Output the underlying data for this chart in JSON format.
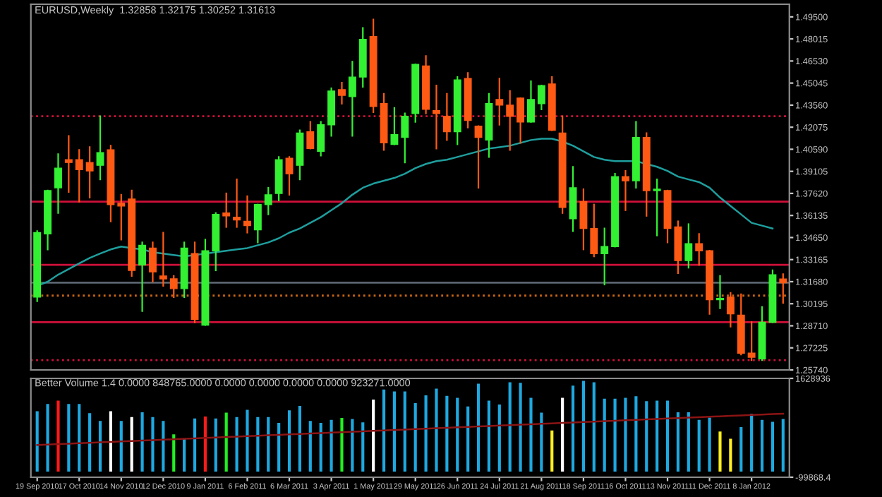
{
  "chart_data": [
    {
      "type": "candlestick",
      "title": "EURUSD,Weekly  1.32858 1.32175 1.30252 1.31613",
      "categories": [
        null,
        null,
        null,
        null,
        null,
        null,
        null,
        null,
        null,
        null,
        null,
        null,
        null,
        null,
        null,
        null,
        null,
        null,
        null,
        null,
        null,
        null,
        null,
        null,
        null,
        null,
        null,
        null,
        null,
        null,
        null,
        null,
        null,
        null,
        null,
        null,
        null,
        null,
        null,
        null,
        null,
        null,
        null,
        null,
        null,
        null,
        null,
        null,
        null,
        null,
        null,
        null,
        null,
        null,
        null,
        null,
        null,
        null,
        null,
        null,
        null,
        null,
        null,
        null,
        null,
        null,
        null,
        null,
        null,
        null,
        null,
        null
      ],
      "ohlc": [
        [
          1.3064,
          1.3508,
          1.3036,
          1.3498
        ],
        [
          1.3489,
          1.3781,
          1.3385,
          1.3781
        ],
        [
          1.38,
          1.4026,
          1.363,
          1.3932
        ],
        [
          1.3989,
          1.4149,
          1.3772,
          1.397
        ],
        [
          1.3989,
          1.4055,
          1.3706,
          1.3922
        ],
        [
          1.397,
          1.4073,
          1.3734,
          1.3913
        ],
        [
          1.3951,
          1.4281,
          1.3856,
          1.4036
        ],
        [
          1.4055,
          1.4083,
          1.3574,
          1.3687
        ],
        [
          1.3696,
          1.3753,
          1.3451,
          1.3677
        ],
        [
          1.3724,
          1.3781,
          1.3206,
          1.3244
        ],
        [
          1.3281,
          1.3432,
          1.297,
          1.3413
        ],
        [
          1.3394,
          1.3432,
          1.3168,
          1.3234
        ],
        [
          1.3206,
          1.3498,
          1.314,
          1.3187
        ],
        [
          1.3187,
          1.3206,
          1.3064,
          1.3121
        ],
        [
          1.3121,
          1.3432,
          1.3064,
          1.3394
        ],
        [
          1.3357,
          1.3432,
          1.2895,
          1.2913
        ],
        [
          1.2876,
          1.3451,
          1.2876,
          1.3376
        ],
        [
          1.3376,
          1.363,
          1.3244,
          1.3621
        ],
        [
          1.363,
          1.3762,
          1.3536,
          1.3611
        ],
        [
          1.3602,
          1.3856,
          1.3536,
          1.3583
        ],
        [
          1.3574,
          1.3743,
          1.3498,
          1.3545
        ],
        [
          1.3517,
          1.3687,
          1.3432,
          1.3687
        ],
        [
          1.3687,
          1.38,
          1.3621,
          1.3753
        ],
        [
          1.3762,
          1.4007,
          1.3715,
          1.3989
        ],
        [
          1.3998,
          1.4007,
          1.3753,
          1.3894
        ],
        [
          1.3951,
          1.4187,
          1.3856,
          1.4168
        ],
        [
          1.4177,
          1.4243,
          1.4064,
          1.4064
        ],
        [
          1.4045,
          1.4243,
          1.4017,
          1.4224
        ],
        [
          1.4224,
          1.4469,
          1.4149,
          1.4451
        ],
        [
          1.446,
          1.4507,
          1.4366,
          1.4422
        ],
        [
          1.4413,
          1.4649,
          1.4149,
          1.4545
        ],
        [
          1.4545,
          1.4875,
          1.4479,
          1.4799
        ],
        [
          1.4818,
          1.4932,
          1.4309,
          1.4347
        ],
        [
          1.4366,
          1.4432,
          1.4055,
          1.4102
        ],
        [
          1.4092,
          1.4337,
          1.4092,
          1.4158
        ],
        [
          1.4139,
          1.43,
          1.397,
          1.4281
        ],
        [
          1.43,
          1.463,
          1.4243,
          1.463
        ],
        [
          1.462,
          1.4686,
          1.43,
          1.4328
        ],
        [
          1.4319,
          1.4488,
          1.4064,
          1.43
        ],
        [
          1.4281,
          1.4432,
          1.4121,
          1.4177
        ],
        [
          1.4177,
          1.4545,
          1.4092,
          1.4526
        ],
        [
          1.4535,
          1.4573,
          1.4205,
          1.4253
        ],
        [
          1.4215,
          1.4215,
          1.38,
          1.4139
        ],
        [
          1.4121,
          1.4432,
          1.4007,
          1.4366
        ],
        [
          1.4394,
          1.4535,
          1.4224,
          1.4356
        ],
        [
          1.4356,
          1.4451,
          1.4055,
          1.4281
        ],
        [
          1.4403,
          1.4403,
          1.4102,
          1.4243
        ],
        [
          1.4243,
          1.4517,
          1.4243,
          1.4394
        ],
        [
          1.4366,
          1.4488,
          1.4328,
          1.4488
        ],
        [
          1.4498,
          1.4545,
          1.4187,
          1.4187
        ],
        [
          1.4168,
          1.4281,
          1.363,
          1.3668
        ],
        [
          1.3592,
          1.3941,
          1.3508,
          1.38
        ],
        [
          1.3706,
          1.379,
          1.3385,
          1.3526
        ],
        [
          1.3526,
          1.3687,
          1.3338,
          1.3357
        ],
        [
          1.3357,
          1.3526,
          1.3149,
          1.3404
        ],
        [
          1.3404,
          1.3894,
          1.3404,
          1.3875
        ],
        [
          1.3875,
          1.3913,
          1.3649,
          1.3847
        ],
        [
          1.3847,
          1.4243,
          1.38,
          1.4139
        ],
        [
          1.4139,
          1.4168,
          1.3611,
          1.3781
        ],
        [
          1.3781,
          1.3856,
          1.3479,
          1.379
        ],
        [
          1.3781,
          1.3781,
          1.3432,
          1.3526
        ],
        [
          1.3536,
          1.3574,
          1.3225,
          1.331
        ],
        [
          1.331,
          1.3555,
          1.3262,
          1.3423
        ],
        [
          1.3423,
          1.3489,
          1.3281,
          1.3376
        ],
        [
          1.3376,
          1.3376,
          1.2951,
          1.3046
        ],
        [
          1.3046,
          1.3206,
          1.2989,
          1.3055
        ],
        [
          1.3064,
          1.3093,
          1.2866,
          1.2951
        ],
        [
          1.2942,
          1.3083,
          1.2678,
          1.2687
        ],
        [
          1.2687,
          1.2895,
          1.264,
          1.2659
        ],
        [
          1.2649,
          1.2998,
          1.264,
          1.2895
        ],
        [
          1.2895,
          1.3244,
          1.2895,
          1.3215
        ],
        [
          1.3186,
          1.3218,
          1.3025,
          1.3161
        ]
      ],
      "series": [
        {
          "type": "line",
          "color": "#1f9e9e",
          "values": [
            1.314,
            1.3168,
            1.3215,
            1.3253,
            1.3291,
            1.3328,
            1.3357,
            1.3385,
            1.3404,
            1.3394,
            1.3385,
            1.3366,
            1.3357,
            1.3347,
            1.3338,
            1.3347,
            1.3357,
            1.3366,
            1.3376,
            1.3385,
            1.3394,
            1.3413,
            1.3432,
            1.346,
            1.3498,
            1.3526,
            1.3564,
            1.3602,
            1.3649,
            1.3696,
            1.3753,
            1.38,
            1.3828,
            1.3847,
            1.3866,
            1.3894,
            1.3932,
            1.396,
            1.3979,
            1.3989,
            1.4007,
            1.4026,
            1.4045,
            1.4064,
            1.4073,
            1.4083,
            1.4102,
            1.4121,
            1.413,
            1.413,
            1.4111,
            1.4083,
            1.4045,
            1.4007,
            1.3989,
            1.3979,
            1.3979,
            1.3979,
            1.396,
            1.3941,
            1.3913,
            1.3875,
            1.3856,
            1.3838,
            1.38,
            1.3734,
            1.3677,
            1.3621,
            1.3564,
            1.3545,
            1.3526,
            null
          ]
        }
      ],
      "ylim": [
        1.2574,
        1.5035
      ],
      "yticks": [
        {
          "value": 1.2574,
          "label": "1.25740"
        },
        {
          "value": 1.27225,
          "label": "1.27225"
        },
        {
          "value": 1.2871,
          "label": "1.28710"
        },
        {
          "value": 1.30195,
          "label": "1.30195"
        },
        {
          "value": 1.3168,
          "label": "1.31680"
        },
        {
          "value": 1.33165,
          "label": "1.33165"
        },
        {
          "value": 1.3465,
          "label": "1.34650"
        },
        {
          "value": 1.36135,
          "label": "1.36135"
        },
        {
          "value": 1.3762,
          "label": "1.37620"
        },
        {
          "value": 1.39105,
          "label": "1.39105"
        },
        {
          "value": 1.4059,
          "label": "1.40590"
        },
        {
          "value": 1.42075,
          "label": "1.42075"
        },
        {
          "value": 1.4356,
          "label": "1.43560"
        },
        {
          "value": 1.45045,
          "label": "1.45045"
        },
        {
          "value": 1.4653,
          "label": "1.46530"
        },
        {
          "value": 1.48015,
          "label": "1.48015"
        },
        {
          "value": 1.495,
          "label": "1.49500"
        }
      ],
      "ref_lines": [
        {
          "axis": "y",
          "value": 1.4281,
          "color": "#d0103a",
          "line_style": "dotted"
        },
        {
          "axis": "y",
          "value": 1.3706,
          "color": "#d0103a",
          "line_style": "solid"
        },
        {
          "axis": "y",
          "value": 1.3281,
          "color": "#d0103a",
          "line_style": "solid"
        },
        {
          "axis": "y",
          "value": 1.3161,
          "color": "#5a6470",
          "line_style": "solid"
        },
        {
          "axis": "y",
          "value": 1.3074,
          "color": "#c86414",
          "line_style": "dotted"
        },
        {
          "axis": "y",
          "value": 1.2895,
          "color": "#d0103a",
          "line_style": "solid"
        },
        {
          "axis": "y",
          "value": 1.264,
          "color": "#d0103a",
          "line_style": "dotted"
        }
      ],
      "tick_labels": "y",
      "grid": false,
      "legend": false
    },
    {
      "type": "bar",
      "title": "Better Volume 1.4 0.0000 848765.0000 0.0000 0.0000 0.0000 0.0000 923271.0000",
      "categories": [
        "19 Sep 2010",
        null,
        null,
        null,
        "17 Oct 2010",
        null,
        null,
        null,
        "14 Nov 2010",
        null,
        null,
        null,
        "12 Dec 2010",
        null,
        null,
        null,
        "9 Jan 2011",
        null,
        null,
        null,
        "6 Feb 2011",
        null,
        null,
        null,
        "6 Mar 2011",
        null,
        null,
        null,
        "3 Apr 2011",
        null,
        null,
        null,
        "1 May 2011",
        null,
        null,
        null,
        "29 May 2011",
        null,
        null,
        null,
        "26 Jun 2011",
        null,
        null,
        null,
        "24 Jul 2011",
        null,
        null,
        null,
        "21 Aug 2011",
        null,
        null,
        null,
        "18 Sep 2011",
        null,
        null,
        null,
        "16 Oct 2011",
        null,
        null,
        null,
        "13 Nov 2011",
        null,
        null,
        null,
        "11 Dec 2011",
        null,
        null,
        null,
        "8 Jan 2012",
        null,
        null,
        null
      ],
      "series": [
        {
          "type": "bar",
          "values": [
            1054000,
            1181000,
            1240000,
            1181000,
            1181000,
            1020000,
            885000,
            1054000,
            885000,
            953000,
            1037000,
            953000,
            885000,
            649000,
            573000,
            928000,
            961000,
            928000,
            1029000,
            953000,
            1079000,
            953000,
            953000,
            852000,
            1071000,
            1147000,
            885000,
            852000,
            902000,
            936000,
            919000,
            860000,
            1257000,
            1434000,
            1400000,
            1400000,
            1198000,
            1332000,
            1451000,
            1324000,
            1290000,
            1138000,
            1535000,
            1240000,
            1172000,
            1560000,
            1552000,
            1290000,
            1029000,
            717000,
            1290000,
            1501000,
            1585000,
            1560000,
            1273000,
            1273000,
            1290000,
            1316000,
            1231000,
            1240000,
            1240000,
            1037000,
            1037000,
            902000,
            944000,
            700000,
            573000,
            776000,
            1012000,
            902000,
            869000,
            919000
          ],
          "colors": [
            "#1ea8e0",
            "#1ea8e0",
            "#ff1a1a",
            "#1ea8e0",
            "#1ea8e0",
            "#1ea8e0",
            "#1ea8e0",
            "#ffffff",
            "#1ea8e0",
            "#ffffff",
            "#1ea8e0",
            "#1ea8e0",
            "#1ea8e0",
            "#22ee22",
            "#1ea8e0",
            "#1ea8e0",
            "#ff1a1a",
            "#1ea8e0",
            "#22ee22",
            "#1ea8e0",
            "#1ea8e0",
            "#1ea8e0",
            "#1ea8e0",
            "#1ea8e0",
            "#1ea8e0",
            "#1ea8e0",
            "#1ea8e0",
            "#1ea8e0",
            "#1ea8e0",
            "#22ee22",
            "#1ea8e0",
            "#1ea8e0",
            "#ffffff",
            "#1ea8e0",
            "#1ea8e0",
            "#1ea8e0",
            "#1ea8e0",
            "#1ea8e0",
            "#1ea8e0",
            "#1ea8e0",
            "#1ea8e0",
            "#1ea8e0",
            "#1ea8e0",
            "#1ea8e0",
            "#1ea8e0",
            "#1ea8e0",
            "#1ea8e0",
            "#1ea8e0",
            "#1ea8e0",
            "#ffee22",
            "#ffffff",
            "#1ea8e0",
            "#1ea8e0",
            "#1ea8e0",
            "#1ea8e0",
            "#1ea8e0",
            "#1ea8e0",
            "#1ea8e0",
            "#1ea8e0",
            "#1ea8e0",
            "#1ea8e0",
            "#1ea8e0",
            "#1ea8e0",
            "#1ea8e0",
            "#1ea8e0",
            "#ffee22",
            "#ffee22",
            "#1ea8e0",
            "#1ea8e0",
            "#1ea8e0",
            "#1ea8e0",
            "#1ea8e0"
          ]
        },
        {
          "type": "line",
          "color": "#8b1414",
          "values": [
            464000,
            472000,
            479000,
            487000,
            495000,
            503000,
            510000,
            518000,
            526000,
            533000,
            541000,
            549000,
            557000,
            564000,
            572000,
            580000,
            588000,
            595000,
            603000,
            611000,
            618000,
            626000,
            634000,
            642000,
            649000,
            657000,
            665000,
            672000,
            680000,
            688000,
            696000,
            703000,
            711000,
            719000,
            726000,
            734000,
            742000,
            750000,
            757000,
            765000,
            773000,
            781000,
            788000,
            796000,
            804000,
            811000,
            819000,
            827000,
            835000,
            842000,
            850000,
            858000,
            865000,
            873000,
            881000,
            889000,
            896000,
            904000,
            912000,
            920000,
            927000,
            935000,
            943000,
            950000,
            958000,
            966000,
            974000,
            981000,
            989000,
            997000,
            1004000,
            1012000
          ]
        }
      ],
      "ylim": [
        -99868.4,
        1628936
      ],
      "yticks": [
        {
          "value": -99868.4,
          "label": "-99868.4"
        },
        1628936
      ],
      "grid": false,
      "legend": false
    }
  ]
}
